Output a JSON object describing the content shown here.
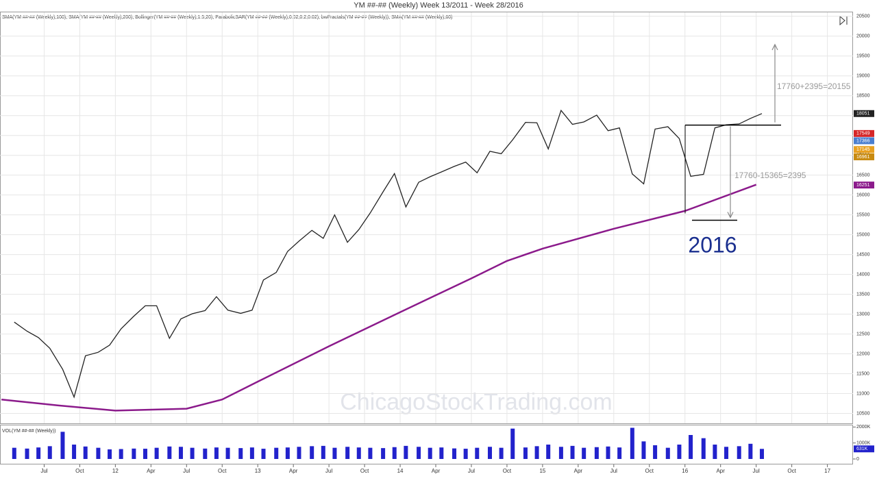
{
  "chart_data": {
    "type": "line",
    "title": "YM ##-## (Weekly)  Week 13/2011 - Week 28/2016",
    "subtitle": "SMA(YM ##-## (Weekly),100), SMA(YM ##-## (Weekly),200), Bollinger(YM ##-## (Weekly),1.5,20), ParabolicSAR(YM ##-## (Weekly),0.02,0.2,0.02), bwFractals(YM ##-## (Weekly)), SMA(YM ##-## (Weekly),60)",
    "xlim": [
      2011.19,
      2017.18
    ],
    "xticks": [
      {
        "value": 2011.5,
        "label": "Jul"
      },
      {
        "value": 2011.75,
        "label": "Oct"
      },
      {
        "value": 2012,
        "label": "12"
      },
      {
        "value": 2012.25,
        "label": "Apr"
      },
      {
        "value": 2012.5,
        "label": "Jul"
      },
      {
        "value": 2012.75,
        "label": "Oct"
      },
      {
        "value": 2013,
        "label": "13"
      },
      {
        "value": 2013.25,
        "label": "Apr"
      },
      {
        "value": 2013.5,
        "label": "Jul"
      },
      {
        "value": 2013.75,
        "label": "Oct"
      },
      {
        "value": 2014,
        "label": "14"
      },
      {
        "value": 2014.25,
        "label": "Apr"
      },
      {
        "value": 2014.5,
        "label": "Jul"
      },
      {
        "value": 2014.75,
        "label": "Oct"
      },
      {
        "value": 2015,
        "label": "15"
      },
      {
        "value": 2015.25,
        "label": "Apr"
      },
      {
        "value": 2015.5,
        "label": "Jul"
      },
      {
        "value": 2015.75,
        "label": "Oct"
      },
      {
        "value": 2016,
        "label": "16"
      },
      {
        "value": 2016.25,
        "label": "Apr"
      },
      {
        "value": 2016.5,
        "label": "Jul"
      },
      {
        "value": 2016.75,
        "label": "Oct"
      },
      {
        "value": 2017,
        "label": "17"
      }
    ],
    "ylim": [
      10250,
      20600
    ],
    "yticks": [
      10500,
      11000,
      11500,
      12000,
      12500,
      13000,
      13500,
      14000,
      14500,
      15000,
      15500,
      16000,
      16500,
      17000,
      17500,
      18000,
      18500,
      19000,
      19500,
      20000,
      20500
    ],
    "grid": true,
    "series": [
      {
        "name": "YM ##-## (Weekly)",
        "color": "#222222",
        "x": [
          2011.29,
          2011.38,
          2011.46,
          2011.54,
          2011.63,
          2011.71,
          2011.79,
          2011.88,
          2011.96,
          2012.04,
          2012.13,
          2012.21,
          2012.29,
          2012.38,
          2012.46,
          2012.54,
          2012.63,
          2012.71,
          2012.79,
          2012.88,
          2012.96,
          2013.04,
          2013.13,
          2013.21,
          2013.29,
          2013.38,
          2013.46,
          2013.54,
          2013.63,
          2013.71,
          2013.79,
          2013.88,
          2013.96,
          2014.04,
          2014.13,
          2014.21,
          2014.29,
          2014.38,
          2014.46,
          2014.54,
          2014.63,
          2014.71,
          2014.79,
          2014.88,
          2014.96,
          2015.04,
          2015.13,
          2015.21,
          2015.29,
          2015.38,
          2015.46,
          2015.54,
          2015.63,
          2015.71,
          2015.79,
          2015.88,
          2015.96,
          2016.04,
          2016.13,
          2016.21,
          2016.29,
          2016.38,
          2016.46,
          2016.54
        ],
        "values": [
          12800,
          12570,
          12410,
          12140,
          11610,
          10910,
          11950,
          12040,
          12220,
          12630,
          12950,
          13210,
          13210,
          12390,
          12880,
          13010,
          13090,
          13440,
          13100,
          13020,
          13100,
          13860,
          14050,
          14580,
          14840,
          15110,
          14910,
          15500,
          14810,
          15130,
          15550,
          16080,
          16540,
          15700,
          16320,
          16460,
          16580,
          16720,
          16830,
          16560,
          17100,
          17040,
          17390,
          17830,
          17820,
          17160,
          18130,
          17780,
          17840,
          18010,
          17620,
          17690,
          16530,
          16280,
          17660,
          17720,
          17420,
          16470,
          16520,
          17690,
          17770,
          17790,
          17930,
          18051
        ]
      },
      {
        "name": "SMA(YM ##-## (Weekly),200)",
        "color": "#8b1a8b",
        "x": [
          2011.2,
          2011.6,
          2012.0,
          2012.5,
          2012.75,
          2013.0,
          2013.5,
          2014.0,
          2014.5,
          2014.75,
          2015.0,
          2015.5,
          2016.0,
          2016.5
        ],
        "values": [
          10850,
          10700,
          10570,
          10620,
          10850,
          11300,
          12190,
          13050,
          13900,
          14340,
          14650,
          15150,
          15600,
          16260
        ]
      }
    ],
    "price_markers": [
      {
        "value": 18051,
        "color": "#222222"
      },
      {
        "value": 17549,
        "color": "#d62728"
      },
      {
        "value": 17366,
        "color": "#4a7fd0"
      },
      {
        "value": 17145,
        "color": "#e8a020"
      },
      {
        "value": 16961,
        "color": "#c88a10"
      },
      {
        "value": 16251,
        "color": "#8b1a8b"
      }
    ],
    "levels": [
      17760,
      15365
    ],
    "annotations": [
      "17760+2395=20155",
      "17760-15365=2395",
      "2016"
    ],
    "watermark": "ChicagoStockTrading.com",
    "volume": {
      "title": "VOL(YM ##-## (Weekly))",
      "color": "#2222cc",
      "ylim": [
        0,
        2100
      ],
      "yticks": [
        {
          "value": 0,
          "label": "0"
        },
        {
          "value": 1000,
          "label": "1000K"
        },
        {
          "value": 2000,
          "label": "2000K"
        }
      ],
      "values": [
        700,
        650,
        720,
        800,
        1700,
        900,
        780,
        700,
        600,
        620,
        650,
        640,
        700,
        780,
        760,
        700,
        650,
        720,
        700,
        680,
        720,
        640,
        700,
        720,
        760,
        800,
        820,
        700,
        760,
        720,
        700,
        680,
        740,
        820,
        760,
        700,
        720,
        660,
        640,
        700,
        760,
        700,
        1900,
        720,
        800,
        900,
        760,
        820,
        700,
        740,
        780,
        720,
        1950,
        1100,
        860,
        700,
        900,
        1500,
        1300,
        900,
        760,
        800,
        950,
        631
      ],
      "current": {
        "value": 631,
        "label": "631K"
      }
    }
  }
}
